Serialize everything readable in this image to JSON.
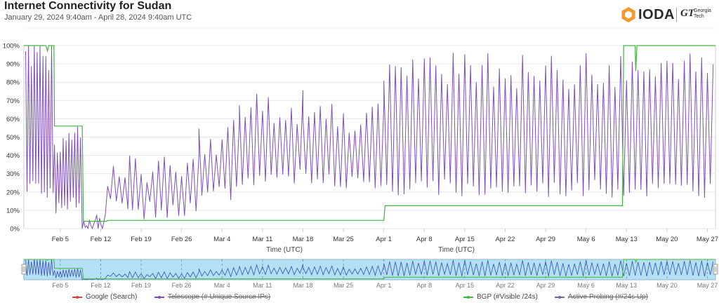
{
  "header": {
    "title": "Internet Connectivity for Sudan",
    "subtitle": "January 29, 2024 9:40am - April 28, 2024 9:40am UTC"
  },
  "logo": {
    "ioda_text": "IODA",
    "gt_mark": "GT",
    "gt_line1": "Georgia",
    "gt_line2": "Tech"
  },
  "colors": {
    "telescope": "#7f4fbd",
    "bgp": "#41b63e",
    "google": "#d64545",
    "active": "#6d6d9e",
    "navigator_bg": "#b3e0f5"
  },
  "chart_data": {
    "type": "line",
    "xlabel": "Time (UTC)",
    "ylim": [
      0,
      100
    ],
    "y_ticks": [
      "0%",
      "10%",
      "20%",
      "30%",
      "40%",
      "50%",
      "60%",
      "70%",
      "80%",
      "90%",
      "100%"
    ],
    "x_ticks": [
      "Feb 5",
      "Feb 12",
      "Feb 19",
      "Feb 26",
      "Mar 4",
      "Mar 11",
      "Mar 18",
      "Mar 25",
      "Apr 1",
      "Apr 8",
      "Apr 15",
      "Apr 22",
      "Apr 29",
      "May 6",
      "May 13",
      "May 20",
      "May 27"
    ],
    "x_tick_days": [
      5,
      12,
      19,
      26,
      33,
      40,
      47,
      54,
      61,
      68,
      75,
      82,
      89,
      96,
      103,
      110,
      117
    ],
    "x_range_days": [
      -1.3,
      118.4
    ],
    "grid": true,
    "legend_placement": "bottom",
    "legend": [
      {
        "name": "Google (Search)",
        "enabled": true
      },
      {
        "name": "Telescope (# Unique Source IPs)",
        "enabled": false
      },
      {
        "name": "BGP (#Visible /24s)",
        "enabled": true
      },
      {
        "name": "Active Probing (#/24s Up)",
        "enabled": false
      }
    ],
    "series": [
      {
        "name": "BGP (#Visible /24s)",
        "points": [
          [
            -1.3,
            100
          ],
          [
            2.5,
            100
          ],
          [
            2.8,
            97
          ],
          [
            3.0,
            100
          ],
          [
            3.9,
            100
          ],
          [
            4.0,
            56
          ],
          [
            8.8,
            56
          ],
          [
            9.0,
            4
          ],
          [
            13.0,
            4
          ],
          [
            13.2,
            4.5
          ],
          [
            61.0,
            4.5
          ],
          [
            61.2,
            12.5
          ],
          [
            102.3,
            12.5
          ],
          [
            102.5,
            100
          ],
          [
            104.5,
            100
          ],
          [
            104.6,
            86
          ],
          [
            104.8,
            100
          ],
          [
            118.4,
            100
          ]
        ]
      },
      {
        "name": "Telescope (# Unique Source IPs)",
        "segments": [
          {
            "start": -1.0,
            "end": 3.9,
            "period": 0.5,
            "base_lo": 22,
            "base_hi": 96,
            "seed": 1
          },
          {
            "start": 4.0,
            "end": 8.6,
            "period": 0.5,
            "base_lo": 12,
            "base_hi": 48,
            "seed": 2
          },
          {
            "start": 8.8,
            "end": 13.0,
            "period": 0.5,
            "base_lo": 0,
            "base_hi": 3,
            "seed": 3
          },
          {
            "start": 13.2,
            "end": 17.0,
            "period": 1,
            "base_lo": 14,
            "base_hi": 32,
            "seed": 4
          },
          {
            "start": 17.0,
            "end": 29.0,
            "period": 1,
            "base_lo": 10,
            "base_hi": 32,
            "seed": 5
          },
          {
            "start": 29.0,
            "end": 36.0,
            "period": 1,
            "base_lo": 20,
            "base_hi": 50,
            "seed": 6
          },
          {
            "start": 36.0,
            "end": 47.0,
            "period": 1,
            "base_lo": 28,
            "base_hi": 66,
            "seed": 7
          },
          {
            "start": 47.0,
            "end": 61.0,
            "period": 1,
            "base_lo": 26,
            "base_hi": 62,
            "seed": 8
          },
          {
            "start": 61.0,
            "end": 118.0,
            "period": 1,
            "base_lo": 22,
            "base_hi": 86,
            "seed": 9
          }
        ]
      }
    ]
  }
}
